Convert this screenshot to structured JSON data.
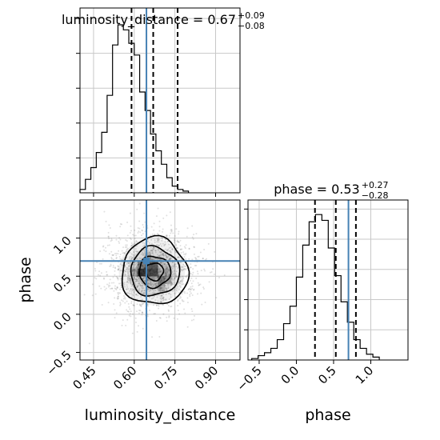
{
  "chart_data": {
    "type": "corner",
    "parameters": [
      {
        "name": "luminosity_distance",
        "median": 0.67,
        "plus": 0.09,
        "minus": 0.08,
        "title_main": "luminosity_distance = 0.67",
        "title_sup": "+0.09",
        "title_sub": "−0.08",
        "range": [
          0.4,
          0.99
        ],
        "ticks": [
          0.45,
          0.6,
          0.75,
          0.9
        ],
        "tick_labels": [
          "0.45",
          "0.60",
          "0.75",
          "0.90"
        ],
        "quantiles": [
          0.59,
          0.67,
          0.76
        ],
        "truth": 0.645,
        "hist_edges_start": 0.4,
        "hist_bin_width": 0.02,
        "hist_counts": [
          2,
          8,
          15,
          24,
          36,
          58,
          88,
          100,
          97,
          89,
          82,
          60,
          49,
          35,
          25,
          17,
          9,
          4,
          2,
          1
        ]
      },
      {
        "name": "phase",
        "median": 0.53,
        "plus": 0.27,
        "minus": 0.28,
        "title_main": "phase = 0.53",
        "title_sup": "+0.27",
        "title_sub": "−0.28",
        "range": [
          -0.65,
          1.5
        ],
        "ticks": [
          -0.5,
          0.0,
          0.5,
          1.0
        ],
        "tick_labels": [
          "−0.5",
          "0.0",
          "0.5",
          "1.0"
        ],
        "ytick_labels": [
          "−0.5",
          "0.0",
          "0.5",
          "1.0"
        ],
        "ylim": [
          -0.6,
          1.5
        ],
        "quantiles": [
          0.25,
          0.53,
          0.8
        ],
        "truth": 0.7,
        "hist_edges_start": -0.6,
        "hist_bin_width": 0.0857,
        "hist_counts": [
          1,
          3,
          5,
          8,
          14,
          25,
          37,
          57,
          79,
          95,
          100,
          96,
          77,
          58,
          40,
          26,
          14,
          8,
          4,
          2
        ]
      }
    ],
    "xlabels": [
      "luminosity_distance",
      "phase"
    ],
    "ylabel": "phase",
    "truth_color": "#4682b4",
    "scatter": {
      "center": [
        0.665,
        0.56
      ],
      "sigma": [
        0.085,
        0.27
      ],
      "n_points": 1600,
      "seed": 7
    },
    "contour_levels": [
      {
        "a": 0.032,
        "b": 0.115
      },
      {
        "a": 0.058,
        "b": 0.205
      },
      {
        "a": 0.09,
        "b": 0.32
      },
      {
        "a": 0.122,
        "b": 0.44
      }
    ],
    "density_cells": [
      {
        "x": 0.625,
        "y": 0.55,
        "shade": 0.95
      },
      {
        "x": 0.65,
        "y": 0.55,
        "shade": 0.75
      },
      {
        "x": 0.675,
        "y": 0.55,
        "shade": 0.72
      },
      {
        "x": 0.65,
        "y": 0.65,
        "shade": 0.55
      },
      {
        "x": 0.675,
        "y": 0.65,
        "shade": 0.6
      },
      {
        "x": 0.7,
        "y": 0.45,
        "shade": 0.5
      },
      {
        "x": 0.725,
        "y": 0.45,
        "shade": 0.35
      },
      {
        "x": 0.7,
        "y": 0.35,
        "shade": 0.3
      },
      {
        "x": 0.625,
        "y": 0.65,
        "shade": 0.45
      },
      {
        "x": 0.6,
        "y": 0.55,
        "shade": 0.3
      },
      {
        "x": 0.725,
        "y": 0.55,
        "shade": 0.3
      },
      {
        "x": 0.65,
        "y": 0.75,
        "shade": 0.25
      }
    ]
  }
}
